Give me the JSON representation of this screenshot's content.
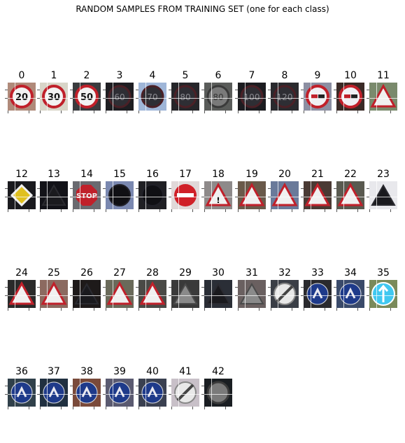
{
  "title": "RANDOM SAMPLES FROM TRAINING SET (one for each class)",
  "samples": [
    {
      "label": "0",
      "bg": "#b08a7a",
      "sign": "circle-red",
      "txt": "20",
      "dark": false
    },
    {
      "label": "1",
      "bg": "#d8d5c8",
      "sign": "circle-red",
      "txt": "30",
      "dark": false
    },
    {
      "label": "2",
      "bg": "#3a3b3e",
      "sign": "circle-red",
      "txt": "50",
      "dark": false
    },
    {
      "label": "3",
      "bg": "#1e1e22",
      "sign": "circle-dark",
      "txt": "60",
      "dark": true
    },
    {
      "label": "4",
      "bg": "#9fb6d8",
      "sign": "circle-dark",
      "txt": "70",
      "dark": true
    },
    {
      "label": "5",
      "bg": "#26262a",
      "sign": "circle-dark",
      "txt": "80",
      "dark": true
    },
    {
      "label": "6",
      "bg": "#5a5c5a",
      "sign": "circle-grey",
      "txt": "80",
      "dark": true
    },
    {
      "label": "7",
      "bg": "#1c1c20",
      "sign": "circle-dark",
      "txt": "100",
      "dark": true
    },
    {
      "label": "8",
      "bg": "#2a2a2e",
      "sign": "circle-dark",
      "txt": "120",
      "dark": true
    },
    {
      "label": "9",
      "bg": "#8c8fa2",
      "sign": "noovertake",
      "txt": "",
      "dark": false
    },
    {
      "label": "10",
      "bg": "#3a2a26",
      "sign": "noovertake",
      "txt": "",
      "dark": false
    },
    {
      "label": "11",
      "bg": "#7a8a6c",
      "sign": "tri-red",
      "txt": "",
      "dark": false
    },
    {
      "label": "12",
      "bg": "#1a1a1e",
      "sign": "diamond",
      "txt": "",
      "dark": true
    },
    {
      "label": "13",
      "bg": "#121218",
      "sign": "tri-dark",
      "txt": "",
      "dark": true
    },
    {
      "label": "14",
      "bg": "#6a6a70",
      "sign": "stop",
      "txt": "STOP",
      "dark": false
    },
    {
      "label": "15",
      "bg": "#7a88b0",
      "sign": "circle-black",
      "txt": "",
      "dark": true
    },
    {
      "label": "16",
      "bg": "#202024",
      "sign": "circle-black",
      "txt": "",
      "dark": true
    },
    {
      "label": "17",
      "bg": "#e0d8d8",
      "sign": "noentry",
      "txt": "",
      "dark": false
    },
    {
      "label": "18",
      "bg": "#8e8a8a",
      "sign": "tri-red",
      "txt": "!",
      "dark": false
    },
    {
      "label": "19",
      "bg": "#6a5a4a",
      "sign": "tri-red",
      "txt": "",
      "dark": false
    },
    {
      "label": "20",
      "bg": "#6a7a9a",
      "sign": "tri-red",
      "txt": "",
      "dark": false
    },
    {
      "label": "21",
      "bg": "#4a3a34",
      "sign": "tri-red",
      "txt": "",
      "dark": false
    },
    {
      "label": "22",
      "bg": "#5a5a50",
      "sign": "tri-red",
      "txt": "",
      "dark": false
    },
    {
      "label": "23",
      "bg": "#e8e8ec",
      "sign": "tri-dark",
      "txt": "",
      "dark": true
    },
    {
      "label": "24",
      "bg": "#2a2a2a",
      "sign": "tri-red",
      "txt": "",
      "dark": true
    },
    {
      "label": "25",
      "bg": "#8c6a60",
      "sign": "tri-red",
      "txt": "",
      "dark": false
    },
    {
      "label": "26",
      "bg": "#1e1a1a",
      "sign": "tri-dark",
      "txt": "",
      "dark": true
    },
    {
      "label": "27",
      "bg": "#6a6a5a",
      "sign": "tri-red",
      "txt": "",
      "dark": false
    },
    {
      "label": "28",
      "bg": "#4a4a46",
      "sign": "tri-red",
      "txt": "",
      "dark": false
    },
    {
      "label": "29",
      "bg": "#3a3a3a",
      "sign": "tri-grey",
      "txt": "",
      "dark": true
    },
    {
      "label": "30",
      "bg": "#2a2e36",
      "sign": "tri-dark",
      "txt": "",
      "dark": true
    },
    {
      "label": "31",
      "bg": "#6a6060",
      "sign": "tri-grey",
      "txt": "",
      "dark": true
    },
    {
      "label": "32",
      "bg": "#3a3e46",
      "sign": "endlimit",
      "txt": "",
      "dark": false
    },
    {
      "label": "33",
      "bg": "#2a2a2e",
      "sign": "blue-circle",
      "txt": "",
      "dark": true
    },
    {
      "label": "34",
      "bg": "#3a4a6a",
      "sign": "blue-circle",
      "txt": "",
      "dark": false
    },
    {
      "label": "35",
      "bg": "#7a8a5a",
      "sign": "cyan-circle",
      "txt": "",
      "dark": false
    },
    {
      "label": "36",
      "bg": "#30404a",
      "sign": "blue-circle",
      "txt": "",
      "dark": false
    },
    {
      "label": "37",
      "bg": "#203040",
      "sign": "blue-circle",
      "txt": "",
      "dark": false
    },
    {
      "label": "38",
      "bg": "#7a4a3a",
      "sign": "blue-circle",
      "txt": "",
      "dark": false
    },
    {
      "label": "39",
      "bg": "#5a5a70",
      "sign": "blue-circle",
      "txt": "",
      "dark": false
    },
    {
      "label": "40",
      "bg": "#3a4050",
      "sign": "blue-circle",
      "txt": "",
      "dark": false
    },
    {
      "label": "41",
      "bg": "#c8c0c8",
      "sign": "endlimit",
      "txt": "",
      "dark": false
    },
    {
      "label": "42",
      "bg": "#1a1e22",
      "sign": "circle-grey",
      "txt": "",
      "dark": true
    }
  ]
}
